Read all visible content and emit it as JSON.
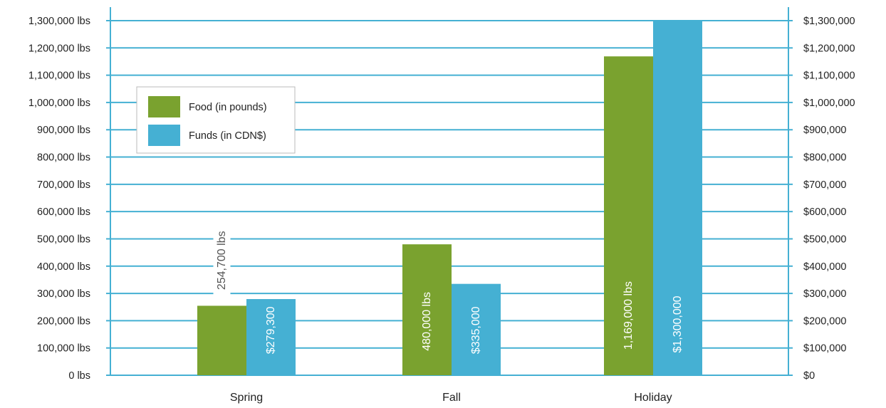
{
  "chart_data": {
    "type": "bar",
    "categories": [
      "Spring",
      "Fall",
      "Holiday"
    ],
    "series": [
      {
        "name": "Food (in pounds)",
        "axis": "left",
        "color": "#7aa22f",
        "values": [
          254700,
          480000,
          1169000
        ],
        "data_labels": [
          "254,700 lbs",
          "480,000 lbs",
          "1,169,000 lbs"
        ]
      },
      {
        "name": "Funds (in CDN$)",
        "axis": "right",
        "color": "#45b0d3",
        "values": [
          279300,
          335000,
          1300000
        ],
        "data_labels": [
          "$279,300",
          "$335,000",
          "$1,300,000"
        ]
      }
    ],
    "ylim": [
      0,
      1300000
    ],
    "y2lim": [
      0,
      1300000
    ],
    "y_ticks": [
      "0 lbs",
      "100,000 lbs",
      "200,000 lbs",
      "300,000 lbs",
      "400,000 lbs",
      "500,000 lbs",
      "600,000 lbs",
      "700,000 lbs",
      "800,000 lbs",
      "900,000 lbs",
      "1,000,000 lbs",
      "1,100,000 lbs",
      "1,200,000 lbs",
      "1,300,000 lbs"
    ],
    "y2_ticks": [
      "$0",
      "$100,000",
      "$200,000",
      "$300,000",
      "$400,000",
      "$500,000",
      "$600,000",
      "$700,000",
      "$800,000",
      "$900,000",
      "$1,000,000",
      "$1,100,000",
      "$1,200,000",
      "$1,300,000"
    ],
    "grid": true,
    "grid_color": "#45b0d3",
    "legend_position": "top-left",
    "title": "",
    "xlabel": "",
    "ylabel": "",
    "y2label": ""
  }
}
